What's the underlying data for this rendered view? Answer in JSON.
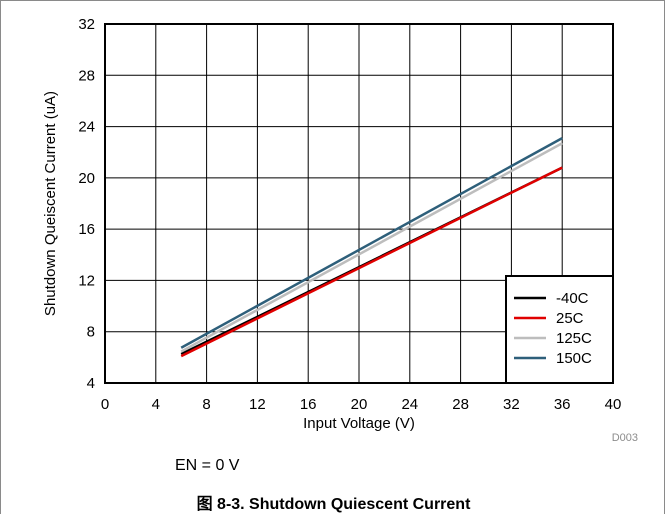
{
  "chart_data": {
    "type": "line",
    "xlabel": "Input Voltage (V)",
    "ylabel": "Shutdown Queiscent Current (uA)",
    "xlim": [
      0,
      40
    ],
    "ylim": [
      4,
      32
    ],
    "xticks": [
      0,
      4,
      8,
      12,
      16,
      20,
      24,
      28,
      32,
      36,
      40
    ],
    "yticks": [
      4,
      8,
      12,
      16,
      20,
      24,
      28,
      32
    ],
    "grid": true,
    "legend_position": "bottom-right",
    "series": [
      {
        "name": "-40C",
        "color": "#000000",
        "x": [
          6,
          36
        ],
        "y": [
          6.25,
          20.8
        ]
      },
      {
        "name": "25C",
        "color": "#e00000",
        "x": [
          6,
          36
        ],
        "y": [
          6.1,
          20.8
        ]
      },
      {
        "name": "125C",
        "color": "#bdbdbd",
        "x": [
          6,
          36
        ],
        "y": [
          6.45,
          22.7
        ]
      },
      {
        "name": "150C",
        "color": "#2e5f7a",
        "x": [
          6,
          36
        ],
        "y": [
          6.75,
          23.1
        ]
      }
    ],
    "code": "D003"
  },
  "note": "EN = 0 V",
  "caption": "图 8-3. Shutdown Quiescent Current"
}
